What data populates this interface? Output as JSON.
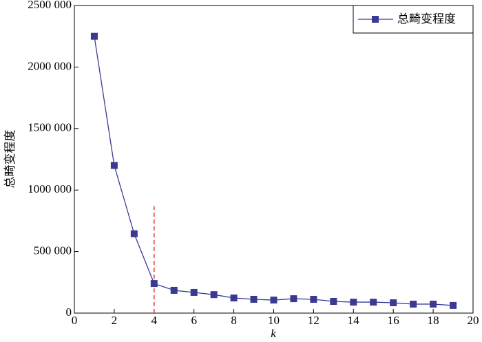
{
  "chart_data": {
    "type": "line",
    "ylabel": "总畸变程度",
    "xlabel": "k",
    "x": [
      1,
      2,
      3,
      4,
      5,
      6,
      7,
      8,
      9,
      10,
      11,
      12,
      13,
      14,
      15,
      16,
      17,
      18,
      19
    ],
    "series": [
      {
        "name": "总畸变程度",
        "color": "#3a3a94",
        "values": [
          2250000,
          1200000,
          645000,
          240000,
          185000,
          168000,
          150000,
          123000,
          112000,
          106000,
          117000,
          112000,
          95000,
          89000,
          89000,
          84000,
          73000,
          73000,
          62000
        ]
      }
    ],
    "xlim": [
      0,
      20
    ],
    "xticks": [
      0,
      2,
      4,
      6,
      8,
      10,
      12,
      14,
      16,
      18,
      20
    ],
    "ylim": [
      0,
      2500000
    ],
    "yticks": [
      0,
      {
        "value": 500000,
        "label": "500 000"
      },
      {
        "value": 1000000,
        "label": "1000 000"
      },
      {
        "value": 1500000,
        "label": "1500 000"
      },
      {
        "value": 2000000,
        "label": "2000 000"
      },
      {
        "value": 2500000,
        "label": "2500 000"
      }
    ],
    "vline": {
      "x": 4,
      "ymax": 870000,
      "color": "#e03030"
    },
    "legend": "upper right"
  }
}
